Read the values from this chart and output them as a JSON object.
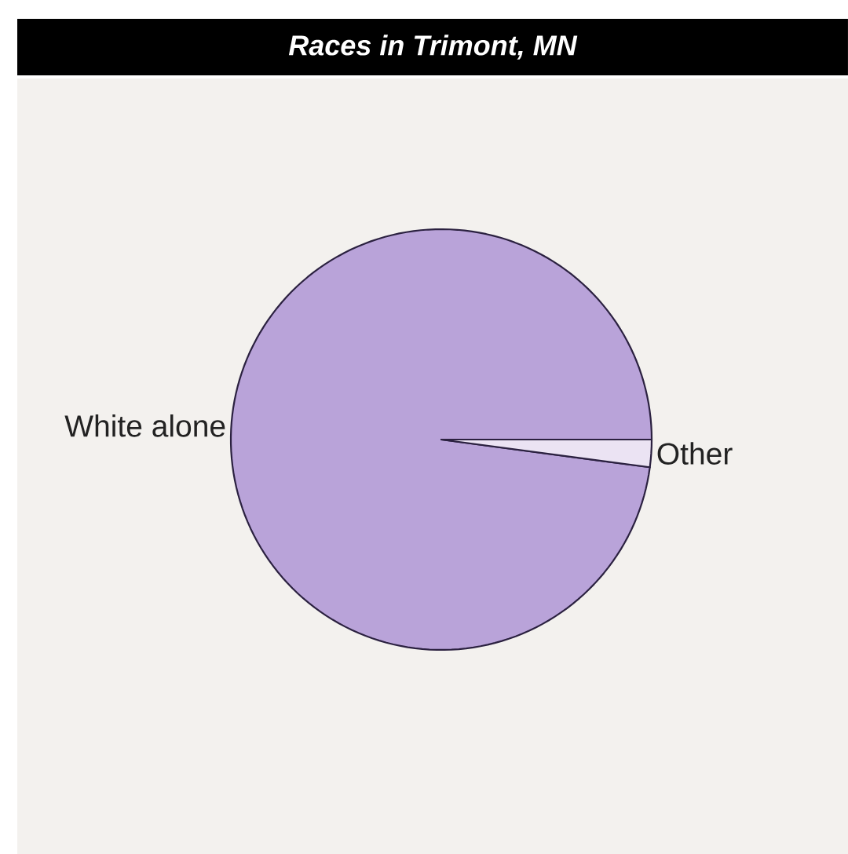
{
  "chart_data": {
    "type": "pie",
    "title": "Races in Trimont, MN",
    "categories": [
      "White alone",
      "Other"
    ],
    "values": [
      97.9,
      2.1
    ],
    "colors": [
      "#b9a3d9",
      "#ebe3f3"
    ]
  }
}
